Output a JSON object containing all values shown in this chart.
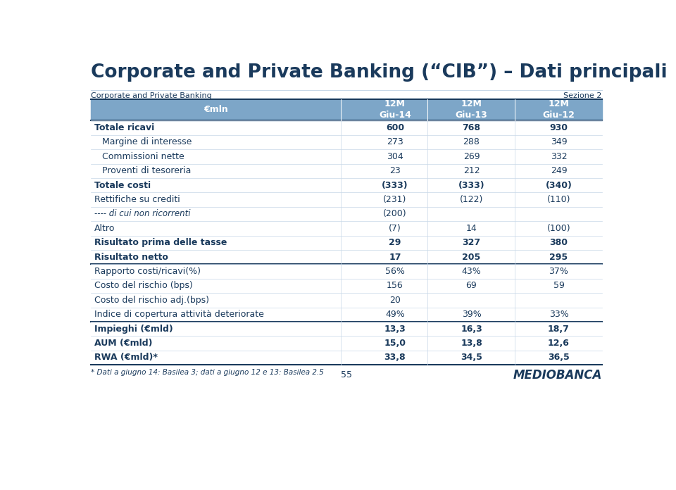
{
  "title": "Corporate and Private Banking (“CIB”) – Dati principali",
  "subtitle_left": "Corporate and Private Banking",
  "subtitle_right": "Sezione 2",
  "header_bg_color": "#7da6c8",
  "title_color": "#1a3a5c",
  "col_header": [
    "€mln",
    "12M\nGiu-14",
    "12M\nGiu-13",
    "12M\nGiu-12"
  ],
  "rows": [
    {
      "label": "Totale ricavi",
      "vals": [
        "600",
        "768",
        "930"
      ],
      "bold": true,
      "indent": false,
      "italic": false
    },
    {
      "label": "Margine di interesse",
      "vals": [
        "273",
        "288",
        "349"
      ],
      "bold": false,
      "indent": true,
      "italic": false
    },
    {
      "label": "Commissioni nette",
      "vals": [
        "304",
        "269",
        "332"
      ],
      "bold": false,
      "indent": true,
      "italic": false
    },
    {
      "label": "Proventi di tesoreria",
      "vals": [
        "23",
        "212",
        "249"
      ],
      "bold": false,
      "indent": true,
      "italic": false
    },
    {
      "label": "Totale costi",
      "vals": [
        "(333)",
        "(333)",
        "(340)"
      ],
      "bold": true,
      "indent": false,
      "italic": false
    },
    {
      "label": "Rettifiche su crediti",
      "vals": [
        "(231)",
        "(122)",
        "(110)"
      ],
      "bold": false,
      "indent": false,
      "italic": false
    },
    {
      "label": "---- di cui non ricorrenti",
      "vals": [
        "(200)",
        "",
        ""
      ],
      "bold": false,
      "indent": false,
      "italic": true
    },
    {
      "label": "Altro",
      "vals": [
        "(7)",
        "14",
        "(100)"
      ],
      "bold": false,
      "indent": false,
      "italic": false
    },
    {
      "label": "Risultato prima delle tasse",
      "vals": [
        "29",
        "327",
        "380"
      ],
      "bold": true,
      "indent": false,
      "italic": false
    },
    {
      "label": "Risultato netto",
      "vals": [
        "17",
        "205",
        "295"
      ],
      "bold": true,
      "indent": false,
      "italic": false,
      "thick_below": true
    },
    {
      "label": "Rapporto costi/ricavi(%)",
      "vals": [
        "56%",
        "43%",
        "37%"
      ],
      "bold": false,
      "indent": false,
      "italic": false
    },
    {
      "label": "Costo del rischio (bps)",
      "vals": [
        "156",
        "69",
        "59"
      ],
      "bold": false,
      "indent": false,
      "italic": false
    },
    {
      "label": "Costo del rischio adj.(bps)",
      "vals": [
        "20",
        "",
        ""
      ],
      "bold": false,
      "indent": false,
      "italic": false
    },
    {
      "label": "Indice di copertura attività deteriorate",
      "vals": [
        "49%",
        "39%",
        "33%"
      ],
      "bold": false,
      "indent": false,
      "italic": false,
      "thick_below": true
    },
    {
      "label": "Impieghi (€mld)",
      "vals": [
        "13,3",
        "16,3",
        "18,7"
      ],
      "bold": true,
      "indent": false,
      "italic": false
    },
    {
      "label": "AUM (€mld)",
      "vals": [
        "15,0",
        "13,8",
        "12,6"
      ],
      "bold": true,
      "indent": false,
      "italic": false
    },
    {
      "label": "RWA (€mld)*",
      "vals": [
        "33,8",
        "34,5",
        "36,5"
      ],
      "bold": true,
      "indent": false,
      "italic": false
    }
  ],
  "footer_note": "* Dati a giugno 14: Basilea 3; dati a giugno 12 e 13: Basilea 2.5",
  "page_number": "55",
  "dark_line_color": "#1a3a5c",
  "light_line_color": "#c8d8e8",
  "text_color": "#1a3a5c"
}
